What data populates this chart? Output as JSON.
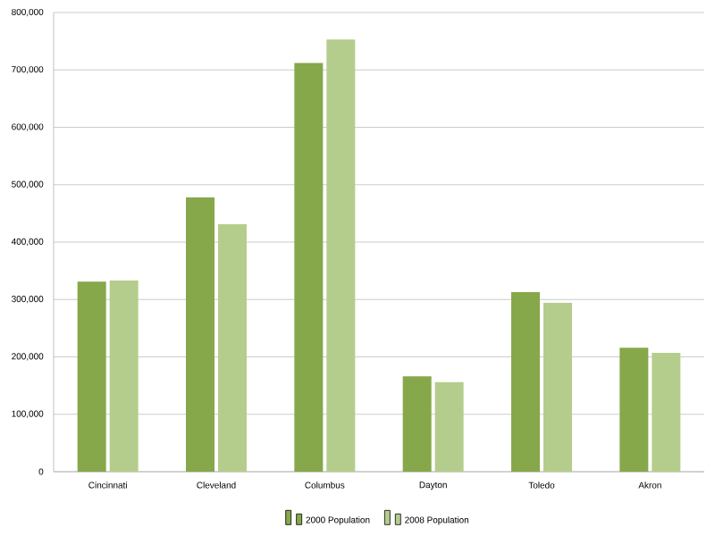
{
  "chart_data": {
    "type": "bar",
    "categories": [
      "Cincinnati",
      "Cleveland",
      "Columbus",
      "Dayton",
      "Toledo",
      "Akron"
    ],
    "series": [
      {
        "name": "2000 Population",
        "color": "#86a84a",
        "values": [
          331000,
          478000,
          712000,
          166000,
          313000,
          216000
        ]
      },
      {
        "name": "2008 Population",
        "color": "#b5cd8c",
        "values": [
          333000,
          431000,
          753000,
          156000,
          294000,
          207000
        ]
      }
    ],
    "ylim": [
      0,
      800000
    ],
    "yticks": [
      {
        "value": 0,
        "label": "0"
      },
      {
        "value": 100000,
        "label": "100,000"
      },
      {
        "value": 200000,
        "label": "200,000"
      },
      {
        "value": 300000,
        "label": "300,000"
      },
      {
        "value": 400000,
        "label": "400,000"
      },
      {
        "value": 500000,
        "label": "500,000"
      },
      {
        "value": 600000,
        "label": "600,000"
      },
      {
        "value": 700000,
        "label": "700,000"
      },
      {
        "value": 800000,
        "label": "800,000"
      }
    ],
    "grid": "y",
    "legend": "bottom"
  }
}
